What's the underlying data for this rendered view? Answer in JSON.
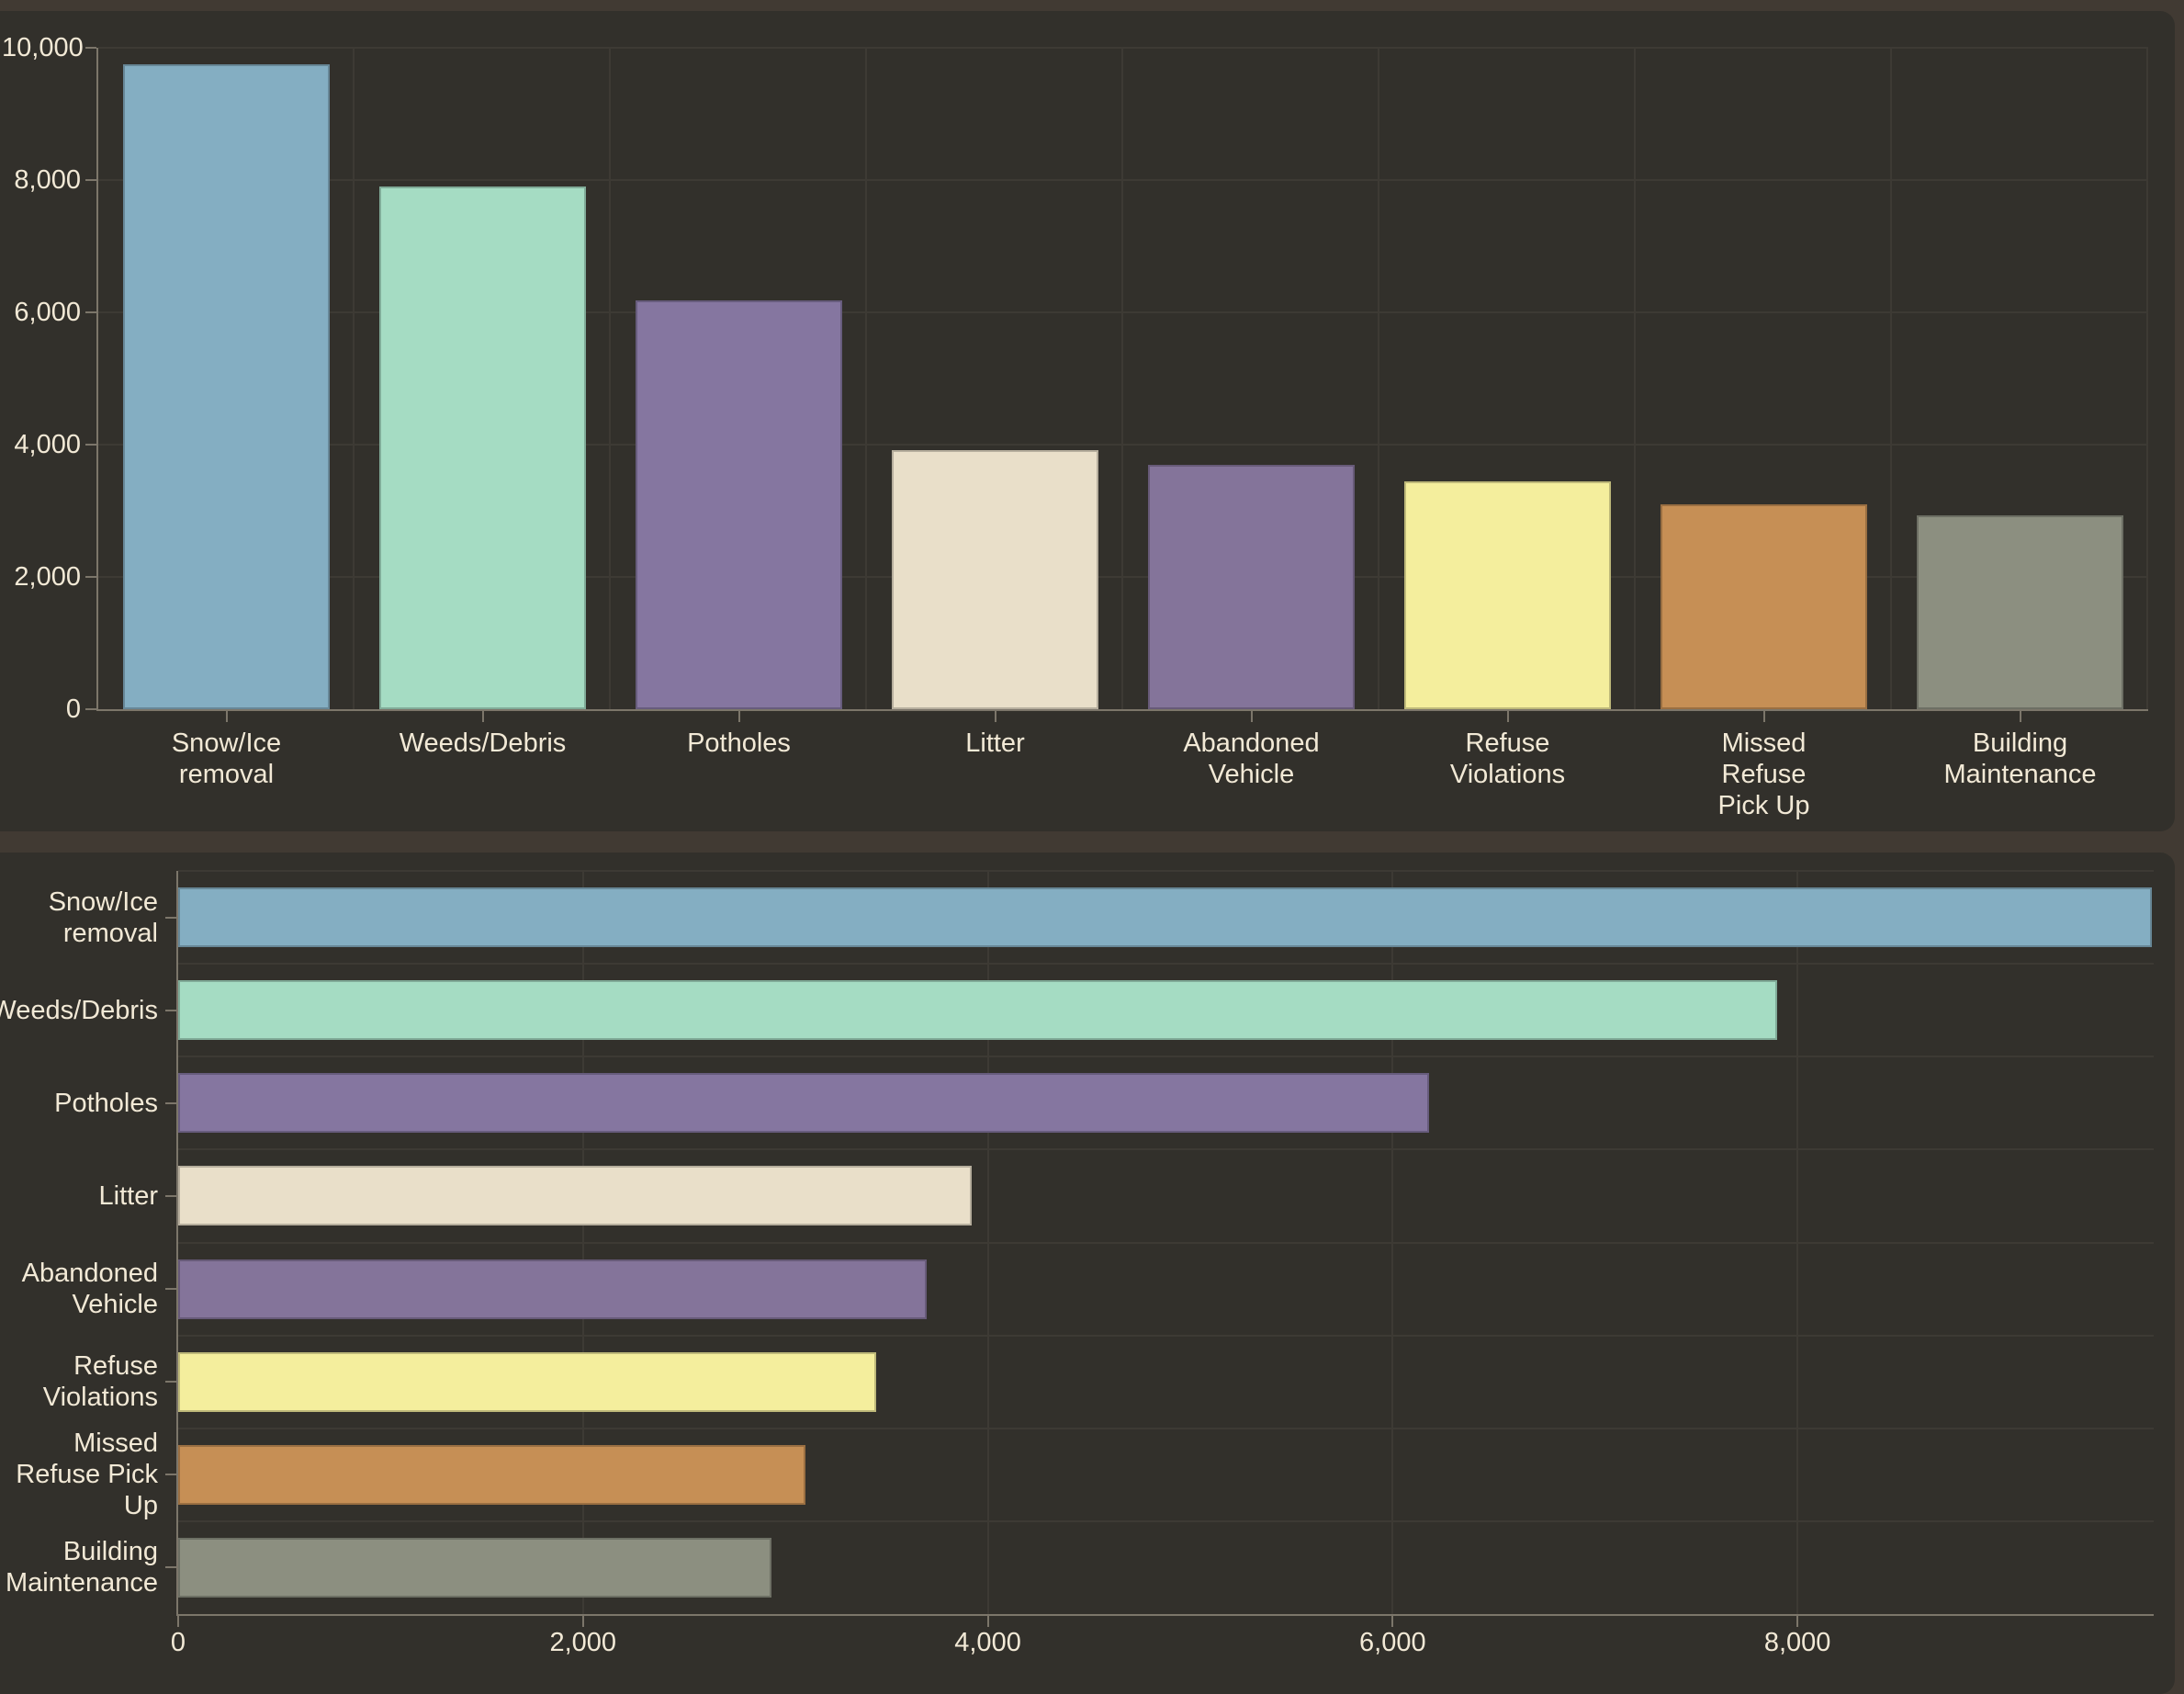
{
  "colors": {
    "page_bg": "#413A33",
    "panel_bg": "#32302B",
    "gridline": "#3D3A34",
    "axis": "#7C766A",
    "text": "#F2E9D6"
  },
  "chart_data": [
    {
      "type": "bar",
      "orientation": "vertical",
      "title": "",
      "xlabel": "",
      "ylabel": "",
      "legend": false,
      "grid": true,
      "categories": [
        "Snow/Ice removal",
        "Weeds/Debris",
        "Potholes",
        "Litter",
        "Abandoned Vehicle",
        "Refuse Violations",
        "Missed Refuse Pick Up",
        "Building Maintenance"
      ],
      "category_label_lines": [
        [
          "Snow/Ice",
          "removal"
        ],
        [
          "Weeds/Debris"
        ],
        [
          "Potholes"
        ],
        [
          "Litter"
        ],
        [
          "Abandoned",
          "Vehicle"
        ],
        [
          "Refuse",
          "Violations"
        ],
        [
          "Missed",
          "Refuse",
          "Pick Up"
        ],
        [
          "Building",
          "Maintenance"
        ]
      ],
      "values": [
        9750,
        7900,
        6180,
        3920,
        3700,
        3450,
        3100,
        2930
      ],
      "bar_colors": [
        "#84AEC2",
        "#A5DCC3",
        "#8576A0",
        "#E9DFC9",
        "#84749A",
        "#F4EE9D",
        "#C68F55",
        "#8C8F80"
      ],
      "y_axis": {
        "min": 0,
        "max": 10000,
        "tick_values": [
          0,
          2000,
          4000,
          6000,
          8000,
          10000
        ],
        "tick_labels": [
          "0",
          "2,000",
          "4,000",
          "6,000",
          "8,000",
          "10,000"
        ]
      }
    },
    {
      "type": "bar",
      "orientation": "horizontal",
      "title": "",
      "xlabel": "",
      "ylabel": "",
      "legend": false,
      "grid": true,
      "categories": [
        "Snow/Ice removal",
        "Weeds/Debris",
        "Potholes",
        "Litter",
        "Abandoned Vehicle",
        "Refuse Violations",
        "Missed Refuse Pick Up",
        "Building Maintenance"
      ],
      "category_label_lines": [
        [
          "Snow/Ice",
          "removal"
        ],
        [
          "Weeds/Debris"
        ],
        [
          "Potholes"
        ],
        [
          "Litter"
        ],
        [
          "Abandoned",
          "Vehicle"
        ],
        [
          "Refuse",
          "Violations"
        ],
        [
          "Missed",
          "Refuse Pick",
          "Up"
        ],
        [
          "Building",
          "Maintenance"
        ]
      ],
      "values": [
        9750,
        7900,
        6180,
        3920,
        3700,
        3450,
        3100,
        2930
      ],
      "bar_colors": [
        "#84AEC2",
        "#A5DCC3",
        "#8576A0",
        "#E9DFC9",
        "#84749A",
        "#F4EE9D",
        "#C68F55",
        "#8C8F80"
      ],
      "x_axis": {
        "min": 0,
        "max": 9760,
        "tick_values": [
          0,
          2000,
          4000,
          6000,
          8000
        ],
        "tick_labels": [
          "0",
          "2,000",
          "4,000",
          "6,000",
          "8,000"
        ]
      }
    }
  ]
}
